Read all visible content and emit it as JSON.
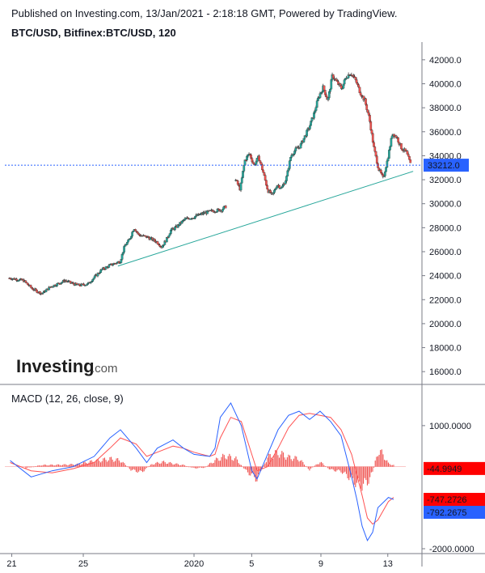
{
  "header": {
    "published": "Published on Investing.com, 13/Jan/2021 - 2:18:18 GMT, Powered by TradingView.",
    "symbol": "BTC/USD, Bitfinex:BTC/USD, 120"
  },
  "logo": {
    "brand": "Investing",
    "suffix": ".com"
  },
  "colors": {
    "up": "#26a69a",
    "down": "#ef5350",
    "wick": "#333333",
    "trendline": "#26a69a",
    "macd_line": "#2962ff",
    "signal_line": "#ff5252",
    "price_label": "#2962ff",
    "macd_label": "#2962ff",
    "signal_label": "#ff0000",
    "hist_label": "#ff0000"
  },
  "chart_data": [
    {
      "type": "candlestick",
      "title": "BTC/USD, Bitfinex:BTC/USD, 120",
      "ylim": [
        15000,
        42800
      ],
      "y_ticks": [
        "42000.0",
        "40000.0",
        "38000.0",
        "36000.0",
        "34000.0",
        "32000.0",
        "30000.0",
        "28000.0",
        "26000.0",
        "24000.0",
        "22000.0",
        "20000.0",
        "18000.0",
        "16000.0"
      ],
      "y_tick_values": [
        42000,
        40000,
        38000,
        36000,
        34000,
        32000,
        30000,
        28000,
        26000,
        24000,
        22000,
        20000,
        18000,
        16000
      ],
      "last_price": 33212.0,
      "last_price_label": "33212.0",
      "close_path": [
        [
          0,
          23800
        ],
        [
          3,
          23600
        ],
        [
          5,
          22900
        ],
        [
          7,
          22500
        ],
        [
          9,
          23100
        ],
        [
          11,
          23400
        ],
        [
          12,
          23600
        ],
        [
          14,
          23300
        ],
        [
          15,
          23200
        ],
        [
          17,
          23300
        ],
        [
          18,
          23700
        ],
        [
          20,
          24500
        ],
        [
          22,
          24900
        ],
        [
          24,
          25200
        ],
        [
          25,
          26500
        ],
        [
          26,
          27000
        ],
        [
          27,
          28000
        ],
        [
          28,
          27400
        ],
        [
          30,
          27200
        ],
        [
          32,
          26800
        ],
        [
          33,
          26400
        ],
        [
          34,
          27000
        ],
        [
          35,
          27800
        ],
        [
          36,
          28000
        ],
        [
          38,
          28700
        ],
        [
          40,
          28900
        ],
        [
          42,
          29200
        ],
        [
          44,
          29400
        ],
        [
          46,
          29500
        ],
        [
          47,
          29800
        ],
        [
          49,
          32000
        ],
        [
          50,
          31200
        ],
        [
          51,
          33600
        ],
        [
          52,
          34200
        ],
        [
          53,
          33200
        ],
        [
          54,
          33900
        ],
        [
          55,
          32600
        ],
        [
          56,
          31100
        ],
        [
          57,
          30700
        ],
        [
          58,
          31600
        ],
        [
          59,
          31300
        ],
        [
          60,
          32100
        ],
        [
          61,
          34000
        ],
        [
          62,
          34500
        ],
        [
          63,
          34800
        ],
        [
          64,
          35600
        ],
        [
          65,
          36400
        ],
        [
          66,
          37500
        ],
        [
          67,
          38900
        ],
        [
          68,
          39700
        ],
        [
          69,
          38600
        ],
        [
          70,
          40700
        ],
        [
          71,
          40100
        ],
        [
          72,
          39600
        ],
        [
          73,
          40600
        ],
        [
          74,
          40900
        ],
        [
          75,
          40300
        ],
        [
          76,
          39300
        ],
        [
          77,
          38600
        ],
        [
          78,
          37100
        ],
        [
          79,
          34600
        ],
        [
          80,
          32900
        ],
        [
          81,
          32100
        ],
        [
          82,
          33800
        ],
        [
          83,
          35900
        ],
        [
          84,
          35500
        ],
        [
          85,
          34600
        ],
        [
          86,
          34300
        ],
        [
          87,
          33212
        ]
      ],
      "trendline": [
        [
          23.5,
          24800
        ],
        [
          87.5,
          32700
        ]
      ],
      "x_ticks": [
        {
          "label": "21",
          "x": 0.5
        },
        {
          "label": "25",
          "x": 16
        },
        {
          "label": "2020",
          "x": 40
        },
        {
          "label": "5",
          "x": 52.5
        },
        {
          "label": "9",
          "x": 67.5
        },
        {
          "label": "13",
          "x": 82
        }
      ],
      "x_range": [
        -1,
        88
      ]
    },
    {
      "type": "macd",
      "title": "MACD (12, 26, close, 9)",
      "ylim": [
        -2000,
        1550
      ],
      "y_ticks": [
        "1000.0000",
        "-2000.0000"
      ],
      "y_tick_values": [
        1000,
        -2000
      ],
      "macd_line": [
        [
          0,
          150
        ],
        [
          4,
          -250
        ],
        [
          8,
          -100
        ],
        [
          12,
          0
        ],
        [
          16,
          250
        ],
        [
          19,
          700
        ],
        [
          21,
          900
        ],
        [
          24,
          450
        ],
        [
          26,
          100
        ],
        [
          28,
          450
        ],
        [
          31,
          650
        ],
        [
          33,
          450
        ],
        [
          35,
          300
        ],
        [
          38,
          250
        ],
        [
          39,
          450
        ],
        [
          40,
          1200
        ],
        [
          42,
          1550
        ],
        [
          44,
          1000
        ],
        [
          46,
          -100
        ],
        [
          47,
          -300
        ],
        [
          49,
          300
        ],
        [
          51,
          900
        ],
        [
          53,
          1250
        ],
        [
          55,
          1350
        ],
        [
          57,
          1150
        ],
        [
          59,
          1350
        ],
        [
          61,
          1100
        ],
        [
          63,
          750
        ],
        [
          65,
          -250
        ],
        [
          66,
          -800
        ],
        [
          67,
          -1450
        ],
        [
          68,
          -1800
        ],
        [
          69,
          -1600
        ],
        [
          70,
          -1000
        ],
        [
          72,
          -750
        ],
        [
          73,
          -800
        ]
      ],
      "signal_line": [
        [
          0,
          100
        ],
        [
          4,
          -100
        ],
        [
          8,
          -150
        ],
        [
          12,
          -50
        ],
        [
          16,
          100
        ],
        [
          19,
          450
        ],
        [
          21,
          700
        ],
        [
          24,
          550
        ],
        [
          26,
          250
        ],
        [
          28,
          350
        ],
        [
          31,
          500
        ],
        [
          33,
          450
        ],
        [
          35,
          350
        ],
        [
          38,
          250
        ],
        [
          39,
          300
        ],
        [
          40,
          700
        ],
        [
          42,
          1200
        ],
        [
          44,
          1100
        ],
        [
          46,
          300
        ],
        [
          47,
          -100
        ],
        [
          49,
          0
        ],
        [
          51,
          450
        ],
        [
          53,
          950
        ],
        [
          55,
          1250
        ],
        [
          57,
          1300
        ],
        [
          59,
          1250
        ],
        [
          61,
          1200
        ],
        [
          63,
          900
        ],
        [
          65,
          300
        ],
        [
          66,
          -200
        ],
        [
          67,
          -700
        ],
        [
          68,
          -1250
        ],
        [
          69,
          -1400
        ],
        [
          70,
          -1300
        ],
        [
          72,
          -850
        ],
        [
          73,
          -750
        ]
      ],
      "histogram": [
        [
          3,
          -50
        ],
        [
          6,
          50
        ],
        [
          10,
          60
        ],
        [
          13,
          80
        ],
        [
          15,
          150
        ],
        [
          17,
          200
        ],
        [
          19,
          250
        ],
        [
          21,
          200
        ],
        [
          23,
          -100
        ],
        [
          25,
          -180
        ],
        [
          27,
          80
        ],
        [
          29,
          150
        ],
        [
          31,
          100
        ],
        [
          33,
          50
        ],
        [
          35,
          -50
        ],
        [
          37,
          -30
        ],
        [
          39,
          200
        ],
        [
          41,
          350
        ],
        [
          43,
          250
        ],
        [
          45,
          -150
        ],
        [
          47,
          -400
        ],
        [
          49,
          300
        ],
        [
          51,
          450
        ],
        [
          53,
          300
        ],
        [
          55,
          250
        ],
        [
          57,
          -100
        ],
        [
          59,
          150
        ],
        [
          61,
          -100
        ],
        [
          63,
          -150
        ],
        [
          65,
          -400
        ],
        [
          66,
          -550
        ],
        [
          67,
          -600
        ],
        [
          68,
          -500
        ],
        [
          69,
          -200
        ],
        [
          70,
          500
        ],
        [
          71,
          400
        ],
        [
          72,
          100
        ],
        [
          73,
          50
        ]
      ],
      "x_range": [
        -1,
        75
      ],
      "hist_value": "-44.9949",
      "signal_value": "-747.2726",
      "macd_value": "-792.2675"
    }
  ]
}
